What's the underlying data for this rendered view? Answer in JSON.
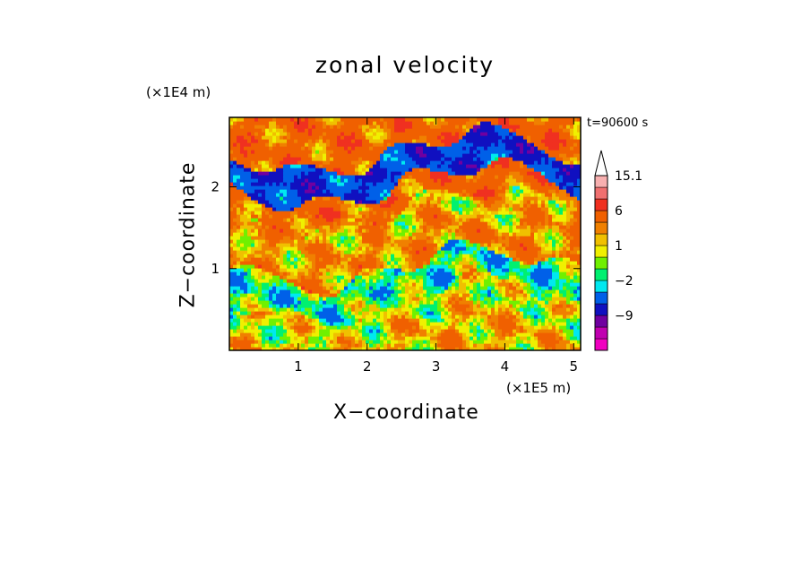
{
  "chart_data": {
    "type": "heatmap",
    "title": "zonal velocity",
    "xlabel": "X−coordinate",
    "ylabel": "Z−coordinate",
    "x_multiplier": "(×1E5 m)",
    "y_multiplier": "(×1E4 m)",
    "time_label": "t=90600 s",
    "xlim": [
      0,
      5.1
    ],
    "ylim": [
      0,
      2.85
    ],
    "xticks": [
      "1",
      "2",
      "3",
      "4",
      "5"
    ],
    "yticks": [
      "1",
      "2"
    ],
    "colorbar": {
      "levels": [
        -15,
        -12,
        -9,
        -6,
        -3,
        -2,
        -1,
        0,
        1,
        2,
        3,
        6,
        9,
        12,
        15.1
      ],
      "colors": [
        "#f000c0",
        "#c000b0",
        "#7000a0",
        "#1010c0",
        "#0060e8",
        "#00e8f0",
        "#00f070",
        "#70f000",
        "#f0f000",
        "#f0c000",
        "#f08000",
        "#f06000",
        "#f03020",
        "#f07070",
        "#f8b0b0"
      ],
      "labels": [
        "15.1",
        "6",
        "1",
        "−2",
        "−9"
      ],
      "extend_top_arrow": true
    },
    "bands": [
      {
        "z_range": [
          0,
          0.25
        ],
        "dominant_value": 1.5,
        "description_color": "yellow"
      },
      {
        "z_range": [
          0.25,
          0.6
        ],
        "dominant_value": 0.5,
        "description_color": "green"
      },
      {
        "z_range": [
          0.6,
          1.0
        ],
        "dominant_value": -1.5,
        "description_color": "cyan"
      },
      {
        "z_range": [
          1.0,
          1.4
        ],
        "dominant_value": 2.5,
        "description_color": "yellow-orange"
      },
      {
        "z_range": [
          1.4,
          1.7
        ],
        "dominant_value": 1.5,
        "description_color": "yellow"
      },
      {
        "z_range": [
          1.7,
          2.0
        ],
        "dominant_value": 4,
        "description_color": "orange"
      },
      {
        "z_range": [
          2.0,
          2.4
        ],
        "dominant_value": -6,
        "description_color": "blue"
      },
      {
        "z_range": [
          2.4,
          2.85
        ],
        "dominant_value": 4,
        "description_color": "orange"
      }
    ]
  }
}
